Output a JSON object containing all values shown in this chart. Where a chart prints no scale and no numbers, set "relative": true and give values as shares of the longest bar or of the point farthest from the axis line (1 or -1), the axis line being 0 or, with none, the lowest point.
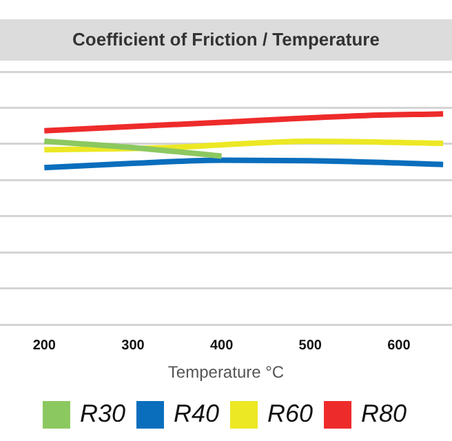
{
  "chart_data": {
    "type": "line",
    "title": "Coefficient of Friction / Temperature",
    "xlabel": "Temperature °C",
    "relative": true,
    "xlim": [
      150,
      660
    ],
    "xticks": [
      200,
      300,
      400,
      500,
      600
    ],
    "grid": "y",
    "legend": "bottom",
    "marker": "none",
    "line_style": "solid",
    "series": [
      {
        "name": "R30",
        "color": "#8cc860",
        "x": [
          200,
          300,
          400
        ],
        "values": [
          0.87,
          0.84,
          0.8
        ]
      },
      {
        "name": "R40",
        "color": "#0a6ebd",
        "x": [
          200,
          300,
          400,
          530,
          650
        ],
        "values": [
          0.745,
          0.765,
          0.78,
          0.775,
          0.76
        ]
      },
      {
        "name": "R60",
        "color": "#ece824",
        "x": [
          200,
          340,
          500,
          650
        ],
        "values": [
          0.83,
          0.84,
          0.87,
          0.86
        ]
      },
      {
        "name": "R80",
        "color": "#ee2b2b",
        "x": [
          200,
          400,
          550,
          650
        ],
        "values": [
          0.92,
          0.96,
          0.99,
          1.0
        ]
      }
    ]
  }
}
